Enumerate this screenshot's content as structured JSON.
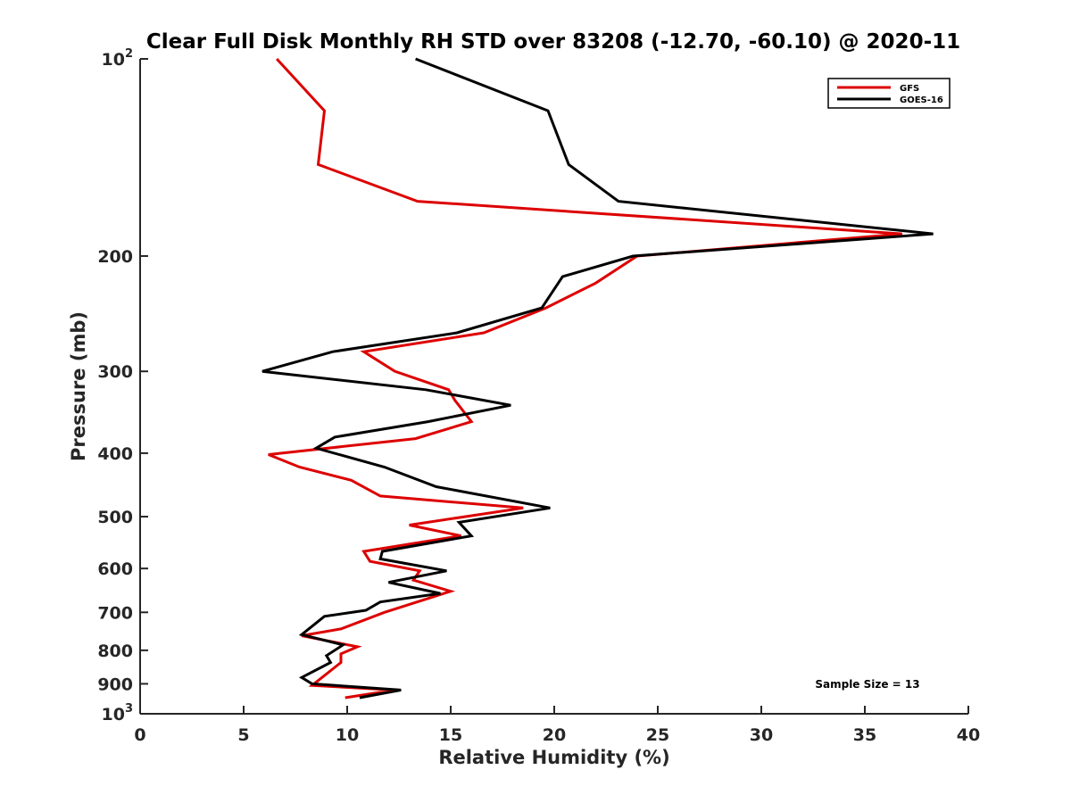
{
  "chart_data": {
    "type": "line",
    "title": "Clear Full Disk Monthly RH STD over 83208 (-12.70, -60.10) @ 2020-11",
    "xlabel": "Relative Humidity (%)",
    "ylabel": "Pressure (mb)",
    "xlim": [
      0,
      40
    ],
    "ylim": [
      100,
      1000
    ],
    "y_scale": "log",
    "y_reversed": true,
    "x_ticks": [
      "0",
      "5",
      "10",
      "15",
      "20",
      "25",
      "30",
      "35",
      "40"
    ],
    "y_ticks": [
      {
        "value": 100,
        "base": "10",
        "exp": "2"
      },
      {
        "value": 200,
        "label": "200"
      },
      {
        "value": 300,
        "label": "300"
      },
      {
        "value": 400,
        "label": "400"
      },
      {
        "value": 500,
        "label": "500"
      },
      {
        "value": 600,
        "label": "600"
      },
      {
        "value": 700,
        "label": "700"
      },
      {
        "value": 800,
        "label": "800"
      },
      {
        "value": 900,
        "label": "900"
      },
      {
        "value": 1000,
        "base": "10",
        "exp": "3"
      }
    ],
    "grid": false,
    "legend_position": "top-right",
    "annotation": "Sample Size = 13",
    "series": [
      {
        "name": "GFS",
        "color": "#dd0000",
        "x": [
          6.6,
          8.9,
          8.6,
          13.4,
          36.8,
          24.0,
          22.0,
          19.6,
          16.6,
          10.8,
          12.3,
          14.9,
          15.2,
          16.0,
          13.3,
          6.2,
          7.7,
          10.2,
          11.6,
          18.5,
          13.0,
          15.5,
          10.8,
          11.1,
          13.5,
          13.2,
          15.0,
          11.8,
          9.7,
          7.8,
          10.5,
          9.7,
          9.7,
          8.3,
          12.3,
          9.9
        ],
        "y": [
          100,
          120,
          145,
          165,
          185,
          200,
          220,
          240,
          262,
          280,
          300,
          320,
          332,
          358,
          380,
          402,
          420,
          440,
          465,
          485,
          515,
          535,
          565,
          585,
          605,
          625,
          650,
          700,
          742,
          760,
          790,
          810,
          835,
          905,
          920,
          945
        ]
      },
      {
        "name": "GOES-16",
        "color": "#000000",
        "x": [
          13.3,
          19.7,
          20.7,
          23.1,
          38.3,
          23.8,
          20.4,
          19.4,
          15.3,
          9.3,
          5.9,
          13.8,
          17.9,
          13.9,
          9.4,
          8.5,
          11.8,
          14.3,
          19.8,
          15.4,
          16.0,
          11.7,
          11.6,
          14.8,
          12.0,
          14.5,
          11.6,
          10.9,
          8.9,
          7.8,
          9.8,
          9.0,
          9.2,
          7.8,
          8.3,
          12.6,
          10.6
        ],
        "y": [
          100,
          120,
          145,
          165,
          185,
          200,
          215,
          240,
          262,
          280,
          300,
          320,
          338,
          358,
          378,
          393,
          420,
          450,
          485,
          510,
          535,
          565,
          580,
          605,
          630,
          655,
          675,
          695,
          710,
          757,
          785,
          815,
          835,
          880,
          900,
          920,
          945
        ]
      }
    ]
  }
}
